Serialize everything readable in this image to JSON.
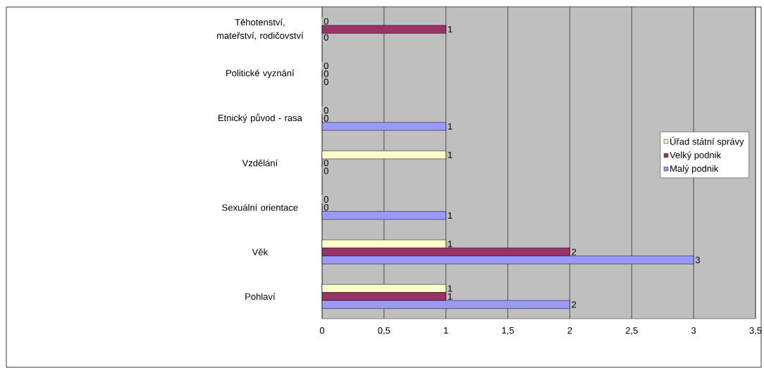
{
  "chart_data": {
    "type": "bar",
    "orientation": "horizontal",
    "categories": [
      "Těhotenství, mateřství, rodičovství",
      "Politické vyznání",
      "Etnický původ  - rasa",
      "Vzdělání",
      "Sexuální orientace",
      "Věk",
      "Pohlaví"
    ],
    "series": [
      {
        "name": "Úřad státní správy",
        "color": "#ffffcc",
        "values": [
          0,
          0,
          0,
          1,
          0,
          1,
          1
        ]
      },
      {
        "name": "Velký podnik",
        "color": "#993366",
        "values": [
          1,
          0,
          0,
          0,
          0,
          2,
          1
        ]
      },
      {
        "name": "Malý podnik",
        "color": "#9999ff",
        "values": [
          0,
          0,
          1,
          0,
          1,
          3,
          2
        ]
      }
    ],
    "xlim": [
      0,
      3.5
    ],
    "xticks": [
      0,
      {
        "value": 0.5,
        "label": "0,5"
      },
      1,
      {
        "value": 1.5,
        "label": "1,5"
      },
      2,
      {
        "value": 2.5,
        "label": "2,5"
      },
      3,
      {
        "value": 3.5,
        "label": "3,5"
      }
    ],
    "grid": "x",
    "legend": "right",
    "data_labels": true
  }
}
